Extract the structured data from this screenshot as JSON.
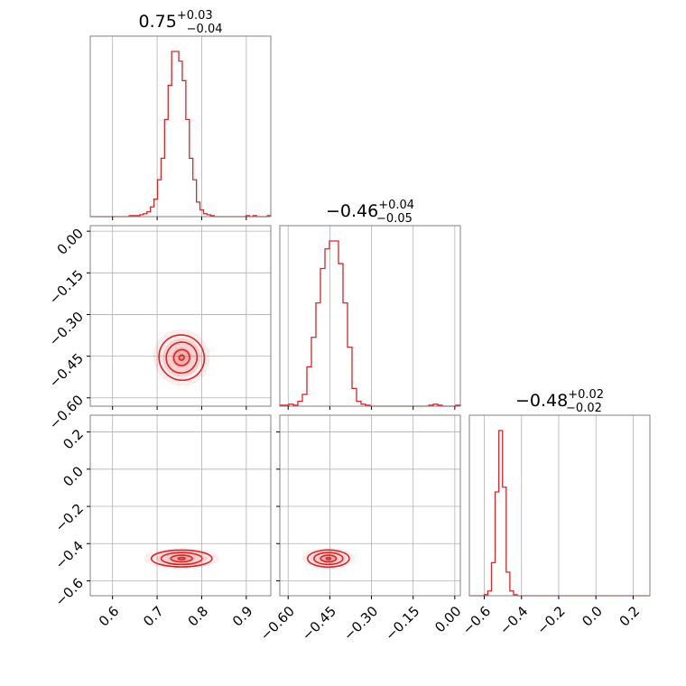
{
  "colors": {
    "series": "#d62728",
    "grid": "#b0b0b0",
    "frame": "#808080"
  },
  "chart_data": {
    "type": "corner",
    "parameters": 3,
    "grid": true,
    "titles": [
      {
        "value": "0.75",
        "plus": "+0.03",
        "minus": "−0.04"
      },
      {
        "value": "−0.46",
        "plus": "+0.04",
        "minus": "−0.05"
      },
      {
        "value": "−0.48",
        "plus": "+0.02",
        "minus": "−0.02"
      }
    ],
    "axes": [
      {
        "range": [
          0.55,
          0.955
        ],
        "ticks": [
          0.6,
          0.7,
          0.8,
          0.9
        ],
        "tick_labels": [
          "0.6",
          "0.7",
          "0.8",
          "0.9"
        ]
      },
      {
        "range": [
          -0.63,
          0.02
        ],
        "ticks": [
          -0.6,
          -0.45,
          -0.3,
          -0.15,
          0.0
        ],
        "tick_labels": [
          "−0.60",
          "−0.45",
          "−0.30",
          "−0.15",
          "0.00"
        ]
      },
      {
        "range": [
          -0.68,
          0.29
        ],
        "ticks": [
          -0.6,
          -0.4,
          -0.2,
          0.0,
          0.2
        ],
        "tick_labels": [
          "−0.6",
          "−0.4",
          "−0.2",
          "0.0",
          "0.2"
        ]
      }
    ],
    "histograms": [
      {
        "param": 0,
        "bin_edges": [
          0.55,
          0.955
        ],
        "counts": [
          0,
          0,
          0,
          0,
          0,
          0,
          0,
          0,
          0,
          0,
          0,
          1,
          1,
          1,
          2,
          3,
          5,
          10,
          18,
          38,
          60,
          100,
          135,
          170,
          170,
          160,
          140,
          100,
          60,
          38,
          15,
          7,
          3,
          2,
          1,
          0,
          0,
          0,
          0,
          0,
          0,
          0,
          0,
          0,
          1,
          0,
          1,
          0,
          0,
          0,
          1
        ]
      },
      {
        "param": 1,
        "bin_edges": [
          -0.63,
          0.02
        ],
        "counts": [
          1,
          1,
          2,
          1,
          5,
          12,
          40,
          70,
          105,
          140,
          160,
          168,
          168,
          145,
          105,
          60,
          18,
          5,
          2,
          1,
          0,
          0,
          0,
          0,
          0,
          0,
          0,
          0,
          0,
          0,
          0,
          0,
          0,
          1,
          2,
          1,
          0,
          0,
          0,
          1
        ]
      },
      {
        "param": 2,
        "bin_edges": [
          -0.68,
          0.29
        ],
        "counts": [
          0,
          0,
          0,
          0,
          1,
          5,
          35,
          110,
          175,
          115,
          25,
          5,
          1,
          0,
          0,
          0,
          0,
          0,
          0,
          0,
          0,
          0,
          0,
          0,
          0,
          0,
          0,
          0,
          0,
          0,
          0,
          0,
          0,
          0,
          0,
          0,
          0,
          0,
          0,
          0,
          0,
          0,
          0,
          0,
          0,
          0,
          0,
          0,
          0
        ]
      }
    ],
    "contours": [
      {
        "x_param": 0,
        "y_param": 1,
        "center": [
          0.755,
          -0.455
        ],
        "levels": [
          {
            "sx": 0.006,
            "sy": 0.009,
            "rot": 46
          },
          {
            "sx": 0.018,
            "sy": 0.028,
            "rot": 46
          },
          {
            "sx": 0.035,
            "sy": 0.055,
            "rot": 46
          },
          {
            "sx": 0.05,
            "sy": 0.083,
            "rot": 46
          }
        ]
      },
      {
        "x_param": 0,
        "y_param": 2,
        "center": [
          0.755,
          -0.48
        ],
        "levels": [
          {
            "sx": 0.008,
            "sy": 0.006,
            "rot": 0
          },
          {
            "sx": 0.024,
            "sy": 0.018,
            "rot": 0
          },
          {
            "sx": 0.046,
            "sy": 0.032,
            "rot": 0
          },
          {
            "sx": 0.068,
            "sy": 0.045,
            "rot": 0
          }
        ]
      },
      {
        "x_param": 1,
        "y_param": 2,
        "center": [
          -0.455,
          -0.48
        ],
        "levels": [
          {
            "sx": 0.008,
            "sy": 0.006,
            "rot": 0
          },
          {
            "sx": 0.028,
            "sy": 0.018,
            "rot": 0
          },
          {
            "sx": 0.052,
            "sy": 0.032,
            "rot": 0
          },
          {
            "sx": 0.075,
            "sy": 0.046,
            "rot": 0
          }
        ]
      }
    ]
  }
}
